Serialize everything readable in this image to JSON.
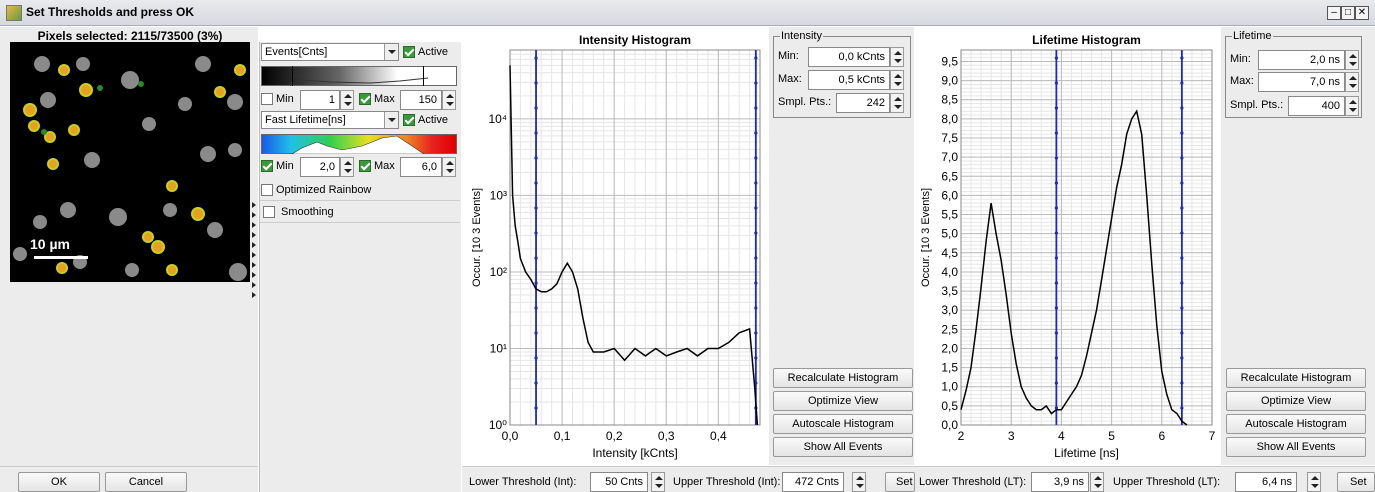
{
  "window": {
    "title": "Set Thresholds and press OK",
    "pixels_selected": "Pixels selected: 2115/73500 (3%)",
    "scale_bar_label": "10 µm"
  },
  "controls": {
    "channel1": {
      "combo": "Events[Cnts]",
      "active_label": "Active",
      "active": true,
      "min_label": "Min",
      "min_checked": false,
      "min_value": "1",
      "max_label": "Max",
      "max_checked": true,
      "max_value": "150"
    },
    "channel2": {
      "combo": "Fast Lifetime[ns]",
      "active_label": "Active",
      "active": true,
      "min_label": "Min",
      "min_checked": true,
      "min_value": "2,0",
      "max_label": "Max",
      "max_checked": true,
      "max_value": "6,0"
    },
    "optimized_rainbow": "Optimized Rainbow",
    "smoothing": "Smoothing"
  },
  "intensity": {
    "group_title": "Intensity",
    "min_label": "Min:",
    "min_value": "0,0 kCnts",
    "max_label": "Max:",
    "max_value": "0,5 kCnts",
    "smpl_label": "Smpl. Pts.:",
    "smpl_value": "242",
    "lower_label": "Lower Threshold (Int):",
    "lower_value": "50 Cnts",
    "upper_label": "Upper Threshold (Int):",
    "upper_value": "472 Cnts",
    "set_label": "Set"
  },
  "lifetime": {
    "group_title": "Lifetime",
    "min_label": "Min:",
    "min_value": "2,0 ns",
    "max_label": "Max:",
    "max_value": "7,0 ns",
    "smpl_label": "Smpl. Pts.:",
    "smpl_value": "400",
    "lower_label": "Lower Threshold (LT):",
    "lower_value": "3,9 ns",
    "upper_label": "Upper Threshold (LT):",
    "upper_value": "6,4 ns",
    "set_label": "Set"
  },
  "buttons": {
    "recalculate": "Recalculate Histogram",
    "optimize": "Optimize View",
    "autoscale": "Autoscale Histogram",
    "show_all": "Show All Events",
    "ok": "OK",
    "cancel": "Cancel"
  },
  "chart_data": [
    {
      "type": "line",
      "title": "Intensity Histogram",
      "xlabel": "Intensity [kCnts]",
      "ylabel": "Occur. [10  3 Events]",
      "x_ticks": [
        "0,0",
        "0,1",
        "0,2",
        "0,3",
        "0,4"
      ],
      "y_ticks": [
        "10⁰",
        "10¹",
        "10²",
        "10³",
        "10⁴"
      ],
      "xlim": [
        0.0,
        0.48
      ],
      "ylim_log10": [
        0,
        4.9
      ],
      "y_scale": "log",
      "thresholds": [
        0.05,
        0.472
      ],
      "x": [
        0.0,
        0.005,
        0.01,
        0.015,
        0.02,
        0.03,
        0.04,
        0.05,
        0.06,
        0.07,
        0.08,
        0.09,
        0.1,
        0.11,
        0.12,
        0.13,
        0.14,
        0.15,
        0.16,
        0.18,
        0.2,
        0.22,
        0.24,
        0.26,
        0.28,
        0.3,
        0.32,
        0.34,
        0.36,
        0.38,
        0.4,
        0.42,
        0.44,
        0.46,
        0.47,
        0.475
      ],
      "values": [
        50000,
        1000,
        400,
        250,
        150,
        100,
        80,
        60,
        55,
        55,
        60,
        70,
        100,
        130,
        100,
        60,
        25,
        12,
        9,
        9,
        10,
        7,
        10,
        8,
        10,
        8,
        9,
        10,
        8,
        10,
        10,
        12,
        16,
        18,
        3,
        1
      ]
    },
    {
      "type": "line",
      "title": "Lifetime Histogram",
      "xlabel": "Lifetime [ns]",
      "ylabel": "Occur. [10  3 Events]",
      "x_ticks": [
        "2",
        "3",
        "4",
        "5",
        "6",
        "7"
      ],
      "y_ticks": [
        "0,0",
        "0,5",
        "1,0",
        "1,5",
        "2,0",
        "2,5",
        "3,0",
        "3,5",
        "4,0",
        "4,5",
        "5,0",
        "5,5",
        "6,0",
        "6,5",
        "7,0",
        "7,5",
        "8,0",
        "8,5",
        "9,0",
        "9,5"
      ],
      "xlim": [
        2,
        7
      ],
      "ylim": [
        0,
        9.8
      ],
      "thresholds": [
        3.9,
        6.4
      ],
      "x": [
        2.0,
        2.1,
        2.2,
        2.3,
        2.4,
        2.5,
        2.6,
        2.7,
        2.8,
        2.9,
        3.0,
        3.1,
        3.2,
        3.3,
        3.4,
        3.5,
        3.6,
        3.7,
        3.8,
        3.9,
        4.0,
        4.1,
        4.2,
        4.3,
        4.4,
        4.5,
        4.6,
        4.7,
        4.8,
        4.9,
        5.0,
        5.1,
        5.2,
        5.3,
        5.4,
        5.5,
        5.6,
        5.7,
        5.8,
        5.9,
        6.0,
        6.1,
        6.2,
        6.3,
        6.4,
        6.5
      ],
      "values": [
        0.4,
        0.9,
        1.5,
        2.5,
        3.6,
        4.8,
        5.8,
        5.0,
        4.3,
        3.4,
        2.4,
        1.6,
        1.0,
        0.7,
        0.5,
        0.4,
        0.4,
        0.5,
        0.3,
        0.4,
        0.4,
        0.6,
        0.8,
        1.0,
        1.3,
        1.8,
        2.4,
        3.0,
        3.8,
        4.6,
        5.4,
        6.2,
        6.8,
        7.6,
        8.0,
        8.2,
        7.6,
        6.0,
        4.2,
        2.6,
        1.4,
        0.8,
        0.4,
        0.3,
        0.1,
        0.0
      ]
    }
  ]
}
